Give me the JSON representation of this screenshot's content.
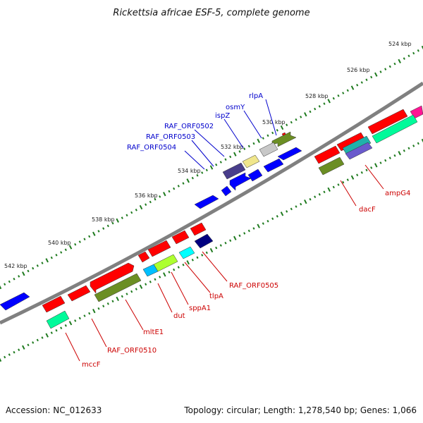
{
  "title": "Rickettsia africae ESF-5, complete genome",
  "footer": {
    "accession": "Accession: NC_012633",
    "summary": "Topology: circular; Length: 1,278,540 bp; Genes: 1,066"
  },
  "colors": {
    "backbone": "#808080",
    "ticks": "#1e7a1e",
    "label_forward": "#0000cc",
    "label_reverse": "#cc0000"
  },
  "scale": {
    "tick_labels": [
      "524 kbp",
      "526 kbp",
      "528 kbp",
      "530 kbp",
      "532 kbp",
      "534 kbp",
      "536 kbp",
      "538 kbp",
      "540 kbp",
      "542 kbp"
    ]
  },
  "genes_forward": [
    {
      "name": "rlpA",
      "color": "#6b8e23"
    },
    {
      "name": "osmY",
      "color": "#c8c8c8"
    },
    {
      "name": "ispZ",
      "color": "#f0e68c"
    },
    {
      "name": "RAF_ORF0502",
      "color": "#483d8b"
    },
    {
      "name": "RAF_ORF0503",
      "color": "#0000ff"
    },
    {
      "name": "RAF_ORF0504",
      "color": "#0000ff"
    }
  ],
  "genes_reverse": [
    {
      "name": "ampG4",
      "color": "#00fa9a"
    },
    {
      "name": "dacF",
      "color": "#6b8e23"
    },
    {
      "name": "RAF_ORF0505",
      "color": "#000080"
    },
    {
      "name": "tlpA",
      "color": "#00ffff"
    },
    {
      "name": "sppA1",
      "color": "#adff2f"
    },
    {
      "name": "dut",
      "color": "#00bfff"
    },
    {
      "name": "mltE1",
      "color": "#6b8e23"
    },
    {
      "name": "RAF_ORF0510",
      "color": "#ff0000"
    },
    {
      "name": "mccF",
      "color": "#00fa9a"
    }
  ]
}
